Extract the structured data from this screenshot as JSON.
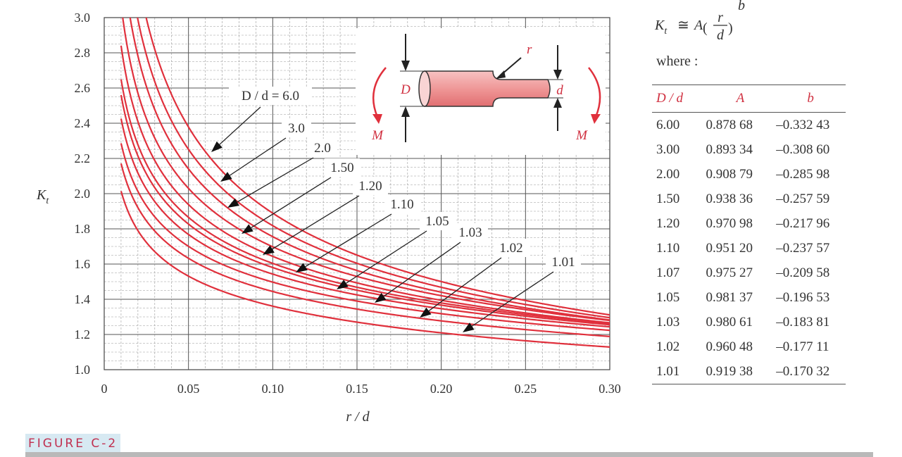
{
  "chart_data": {
    "type": "line",
    "xlabel": "r / d",
    "ylabel": "K",
    "ylabel_subscript": "t",
    "xlim": [
      0,
      0.3
    ],
    "ylim": [
      1.0,
      3.0
    ],
    "x_ticks": [
      "0",
      "0.05",
      "0.10",
      "0.15",
      "0.20",
      "0.25",
      "0.30"
    ],
    "y_ticks": [
      "1.0",
      "1.2",
      "1.4",
      "1.6",
      "1.8",
      "2.0",
      "2.2",
      "2.4",
      "2.6",
      "2.8",
      "3.0"
    ],
    "grid": true,
    "x_range_curves": [
      0.01,
      0.3
    ],
    "curve_labels": [
      "D / d = 6.0",
      "3.0",
      "2.0",
      "1.50",
      "1.20",
      "1.10",
      "1.05",
      "1.03",
      "1.02",
      "1.01"
    ],
    "series": [
      {
        "A": 0.87868,
        "b": -0.33243
      },
      {
        "A": 0.89334,
        "b": -0.3086
      },
      {
        "A": 0.90879,
        "b": -0.28598
      },
      {
        "A": 0.93836,
        "b": -0.25759
      },
      {
        "A": 0.97098,
        "b": -0.21796
      },
      {
        "A": 0.9512,
        "b": -0.23757
      },
      {
        "A": 0.97527,
        "b": -0.20958
      },
      {
        "A": 0.98137,
        "b": -0.19653
      },
      {
        "A": 0.98061,
        "b": -0.18381
      },
      {
        "A": 0.96048,
        "b": -0.17711
      },
      {
        "A": 0.91938,
        "b": -0.17032
      }
    ],
    "curve_color": "#e0303c"
  },
  "equation": {
    "lhs": "K",
    "lhs_sub": "t",
    "approx": "≅",
    "coef": "A",
    "num": "r",
    "den": "d",
    "exp": "b",
    "where": "where :"
  },
  "inset": {
    "D": "D",
    "d": "d",
    "r": "r",
    "M_left": "M",
    "M_right": "M"
  },
  "table": {
    "headers": [
      "D / d",
      "A",
      "b"
    ],
    "rows": [
      [
        "6.00",
        "0.878 68",
        "–0.332 43"
      ],
      [
        "3.00",
        "0.893 34",
        "–0.308 60"
      ],
      [
        "2.00",
        "0.908 79",
        "–0.285 98"
      ],
      [
        "1.50",
        "0.938 36",
        "–0.257 59"
      ],
      [
        "1.20",
        "0.970 98",
        "–0.217 96"
      ],
      [
        "1.10",
        "0.951 20",
        "–0.237 57"
      ],
      [
        "1.07",
        "0.975 27",
        "–0.209 58"
      ],
      [
        "1.05",
        "0.981 37",
        "–0.196 53"
      ],
      [
        "1.03",
        "0.980 61",
        "–0.183 81"
      ],
      [
        "1.02",
        "0.960 48",
        "–0.177 11"
      ],
      [
        "1.01",
        "0.919 38",
        "–0.170 32"
      ]
    ]
  },
  "caption": "FIGURE C-2"
}
